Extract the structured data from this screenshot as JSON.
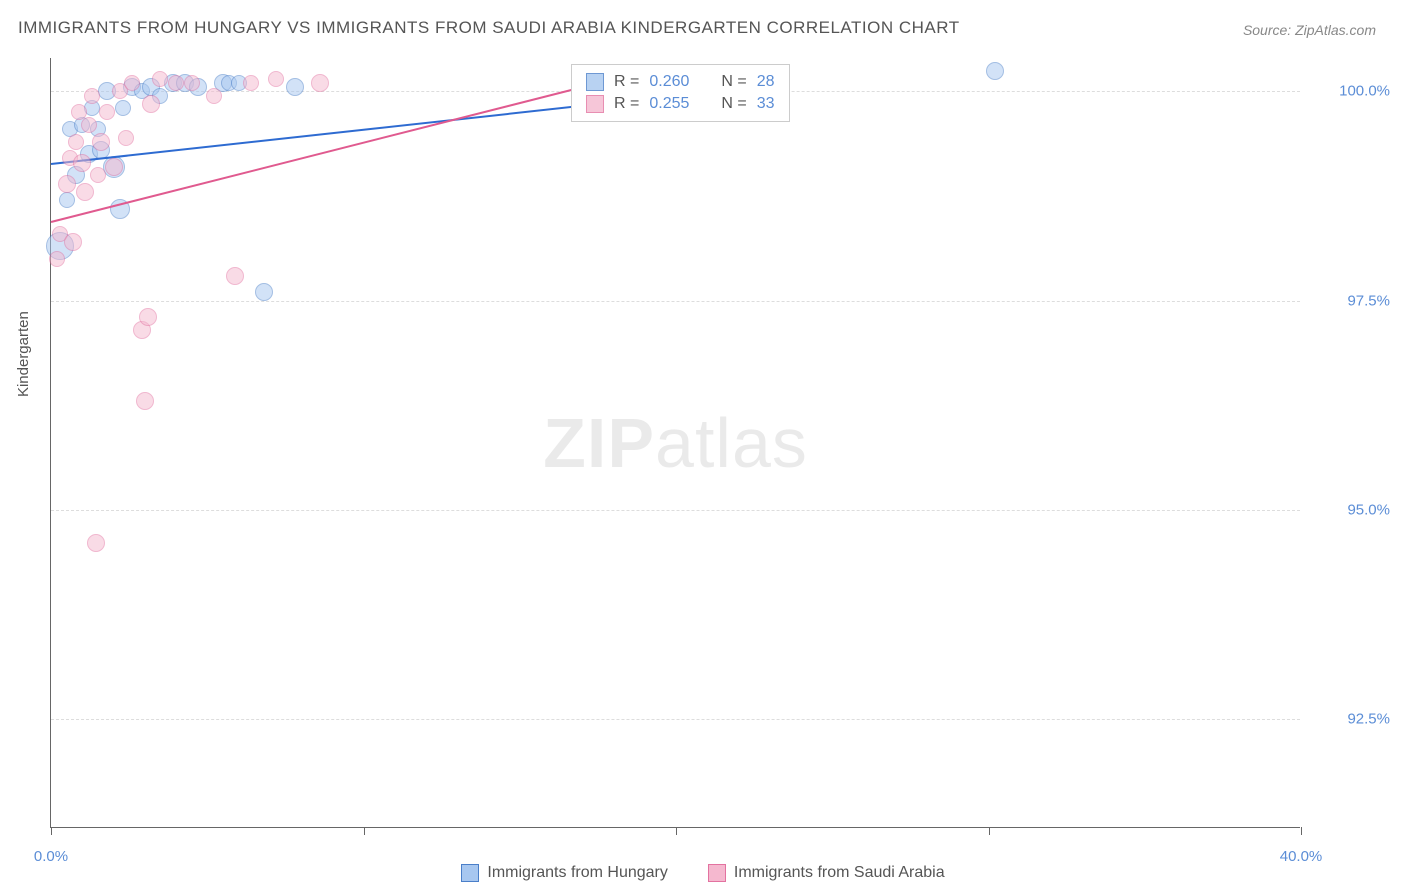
{
  "title": "IMMIGRANTS FROM HUNGARY VS IMMIGRANTS FROM SAUDI ARABIA KINDERGARTEN CORRELATION CHART",
  "source": "Source: ZipAtlas.com",
  "y_axis_label": "Kindergarten",
  "watermark_bold": "ZIP",
  "watermark_light": "atlas",
  "chart": {
    "type": "scatter-with-trend",
    "x_range": [
      0,
      40
    ],
    "y_range": [
      91.2,
      100.4
    ],
    "background_color": "#ffffff",
    "grid_color": "#dddddd",
    "axis_color": "#666666",
    "tick_label_color": "#5b8dd6",
    "y_ticks": [
      {
        "value": 100.0,
        "label": "100.0%"
      },
      {
        "value": 97.5,
        "label": "97.5%"
      },
      {
        "value": 95.0,
        "label": "95.0%"
      },
      {
        "value": 92.5,
        "label": "92.5%"
      }
    ],
    "x_ticks_major": [
      0,
      20,
      40
    ],
    "x_ticks_minor": [
      10,
      30
    ],
    "x_tick_labels": [
      {
        "value": 0,
        "label": "0.0%"
      },
      {
        "value": 40,
        "label": "40.0%"
      }
    ],
    "series": [
      {
        "name": "Immigrants from Hungary",
        "fill_color": "#a7c7f0",
        "stroke_color": "#4a7fc9",
        "fill_opacity": 0.5,
        "line_color": "#2e6bd1",
        "r_value": "0.260",
        "n_value": "28",
        "trend": {
          "x1": 0,
          "y1": 99.15,
          "x2": 22,
          "y2": 100.05
        },
        "points": [
          {
            "x": 0.3,
            "y": 98.15,
            "r": 14
          },
          {
            "x": 0.5,
            "y": 98.7,
            "r": 8
          },
          {
            "x": 0.6,
            "y": 99.55,
            "r": 8
          },
          {
            "x": 0.8,
            "y": 99.0,
            "r": 9
          },
          {
            "x": 1.0,
            "y": 99.6,
            "r": 8
          },
          {
            "x": 1.2,
            "y": 99.25,
            "r": 9
          },
          {
            "x": 1.3,
            "y": 99.8,
            "r": 8
          },
          {
            "x": 1.5,
            "y": 99.55,
            "r": 8
          },
          {
            "x": 1.6,
            "y": 99.3,
            "r": 9
          },
          {
            "x": 1.8,
            "y": 100.0,
            "r": 9
          },
          {
            "x": 2.0,
            "y": 99.1,
            "r": 11
          },
          {
            "x": 2.2,
            "y": 98.6,
            "r": 10
          },
          {
            "x": 2.3,
            "y": 99.8,
            "r": 8
          },
          {
            "x": 2.6,
            "y": 100.05,
            "r": 9
          },
          {
            "x": 2.9,
            "y": 100.0,
            "r": 8
          },
          {
            "x": 3.2,
            "y": 100.05,
            "r": 9
          },
          {
            "x": 3.5,
            "y": 99.95,
            "r": 8
          },
          {
            "x": 3.9,
            "y": 100.1,
            "r": 9
          },
          {
            "x": 4.3,
            "y": 100.1,
            "r": 9
          },
          {
            "x": 4.7,
            "y": 100.05,
            "r": 9
          },
          {
            "x": 5.5,
            "y": 100.1,
            "r": 9
          },
          {
            "x": 5.7,
            "y": 100.1,
            "r": 8
          },
          {
            "x": 6.0,
            "y": 100.1,
            "r": 8
          },
          {
            "x": 6.8,
            "y": 97.6,
            "r": 9
          },
          {
            "x": 7.8,
            "y": 100.05,
            "r": 9
          },
          {
            "x": 30.2,
            "y": 100.25,
            "r": 9
          }
        ]
      },
      {
        "name": "Immigrants from Saudi Arabia",
        "fill_color": "#f5b8cf",
        "stroke_color": "#e372a0",
        "fill_opacity": 0.5,
        "line_color": "#e05a8f",
        "r_value": "0.255",
        "n_value": "33",
        "trend": {
          "x1": 0,
          "y1": 98.45,
          "x2": 19,
          "y2": 100.25
        },
        "points": [
          {
            "x": 0.2,
            "y": 98.0,
            "r": 8
          },
          {
            "x": 0.3,
            "y": 98.3,
            "r": 8
          },
          {
            "x": 0.5,
            "y": 98.9,
            "r": 9
          },
          {
            "x": 0.6,
            "y": 99.2,
            "r": 8
          },
          {
            "x": 0.7,
            "y": 98.2,
            "r": 9
          },
          {
            "x": 0.8,
            "y": 99.4,
            "r": 8
          },
          {
            "x": 0.9,
            "y": 99.75,
            "r": 8
          },
          {
            "x": 1.0,
            "y": 99.15,
            "r": 9
          },
          {
            "x": 1.1,
            "y": 98.8,
            "r": 9
          },
          {
            "x": 1.2,
            "y": 99.6,
            "r": 8
          },
          {
            "x": 1.3,
            "y": 99.95,
            "r": 8
          },
          {
            "x": 1.45,
            "y": 94.6,
            "r": 9
          },
          {
            "x": 1.5,
            "y": 99.0,
            "r": 8
          },
          {
            "x": 1.6,
            "y": 99.4,
            "r": 9
          },
          {
            "x": 1.8,
            "y": 99.75,
            "r": 8
          },
          {
            "x": 2.0,
            "y": 99.1,
            "r": 9
          },
          {
            "x": 2.2,
            "y": 100.0,
            "r": 8
          },
          {
            "x": 2.4,
            "y": 99.45,
            "r": 8
          },
          {
            "x": 2.6,
            "y": 100.1,
            "r": 8
          },
          {
            "x": 2.9,
            "y": 97.15,
            "r": 9
          },
          {
            "x": 3.0,
            "y": 96.3,
            "r": 9
          },
          {
            "x": 3.1,
            "y": 97.3,
            "r": 9
          },
          {
            "x": 3.2,
            "y": 99.85,
            "r": 9
          },
          {
            "x": 3.5,
            "y": 100.15,
            "r": 8
          },
          {
            "x": 4.0,
            "y": 100.1,
            "r": 8
          },
          {
            "x": 4.5,
            "y": 100.1,
            "r": 8
          },
          {
            "x": 5.2,
            "y": 99.95,
            "r": 8
          },
          {
            "x": 5.9,
            "y": 97.8,
            "r": 9
          },
          {
            "x": 6.4,
            "y": 100.1,
            "r": 8
          },
          {
            "x": 7.2,
            "y": 100.15,
            "r": 8
          },
          {
            "x": 8.6,
            "y": 100.1,
            "r": 9
          }
        ]
      }
    ]
  },
  "legend_labels": {
    "r_prefix": "R = ",
    "n_prefix": "N = "
  }
}
